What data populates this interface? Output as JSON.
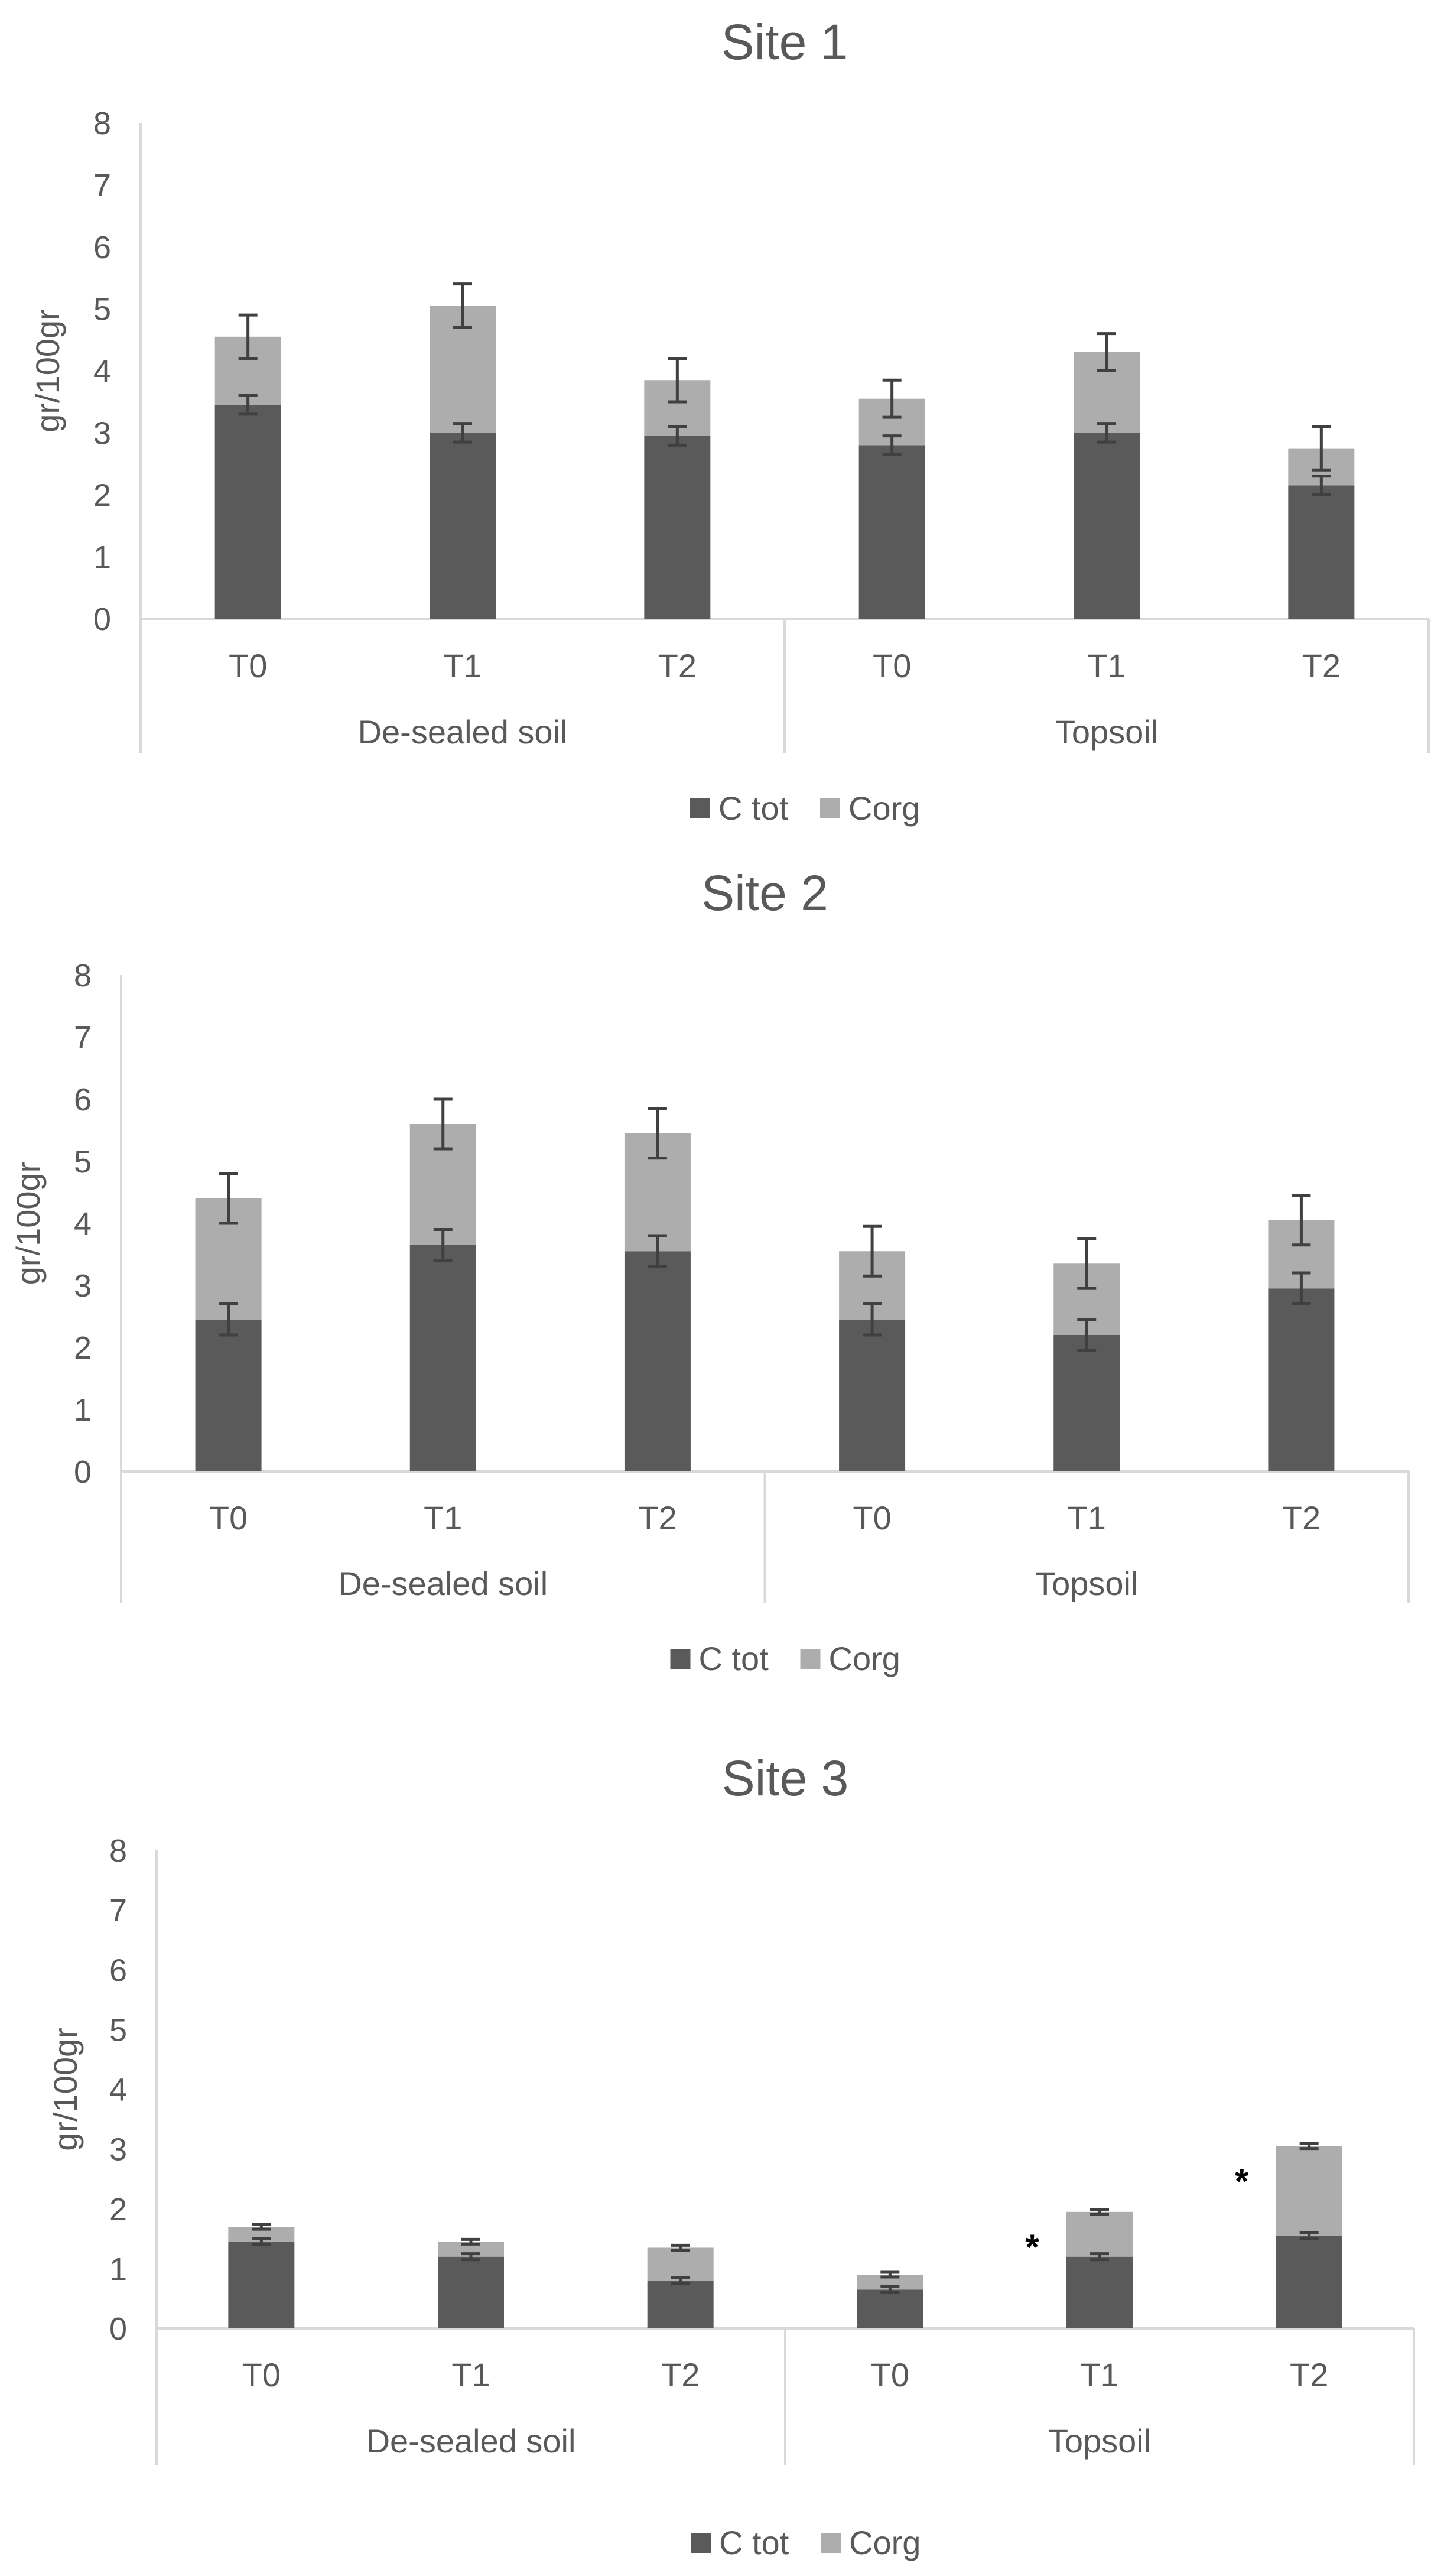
{
  "colors": {
    "ctot": "#5a5a5a",
    "corg": "#adadad",
    "axis": "#d9d9d9",
    "text": "#595959",
    "error": "#404040",
    "background": "#ffffff"
  },
  "chart_data": [
    {
      "type": "bar",
      "stacked": true,
      "title": "Site 1",
      "ylabel": "gr/100gr",
      "ylim": [
        0,
        8
      ],
      "yticks": [
        "0",
        "1",
        "2",
        "3",
        "4",
        "5",
        "6",
        "7",
        "8"
      ],
      "groups": [
        "De-sealed soil",
        "Topsoil"
      ],
      "categories": [
        "T0",
        "T1",
        "T2",
        "T0",
        "T1",
        "T2"
      ],
      "legend": {
        "position": "bottom",
        "entries": [
          "C tot",
          "Corg"
        ]
      },
      "series": [
        {
          "name": "C tot",
          "values": [
            3.45,
            3.0,
            2.95,
            2.8,
            3.0,
            2.15
          ],
          "errors": [
            0.15,
            0.15,
            0.15,
            0.15,
            0.15,
            0.15
          ]
        },
        {
          "name": "Corg",
          "values": [
            1.1,
            2.05,
            0.9,
            0.75,
            1.3,
            0.6
          ],
          "errors": [
            0.35,
            0.35,
            0.35,
            0.3,
            0.3,
            0.35
          ]
        }
      ],
      "annotations": [
        "",
        "",
        "",
        "",
        "",
        ""
      ]
    },
    {
      "type": "bar",
      "stacked": true,
      "title": "Site 2",
      "ylabel": "gr/100gr",
      "ylim": [
        0,
        8
      ],
      "yticks": [
        "0",
        "1",
        "2",
        "3",
        "4",
        "5",
        "6",
        "7",
        "8"
      ],
      "groups": [
        "De-sealed soil",
        "Topsoil"
      ],
      "categories": [
        "T0",
        "T1",
        "T2",
        "T0",
        "T1",
        "T2"
      ],
      "legend": {
        "position": "bottom",
        "entries": [
          "C tot",
          "Corg"
        ]
      },
      "series": [
        {
          "name": "C tot",
          "values": [
            2.45,
            3.65,
            3.55,
            2.45,
            2.2,
            2.95
          ],
          "errors": [
            0.25,
            0.25,
            0.25,
            0.25,
            0.25,
            0.25
          ]
        },
        {
          "name": "Corg",
          "values": [
            1.95,
            1.95,
            1.9,
            1.1,
            1.15,
            1.1
          ],
          "errors": [
            0.4,
            0.4,
            0.4,
            0.4,
            0.4,
            0.4
          ]
        }
      ],
      "annotations": [
        "",
        "",
        "",
        "",
        "",
        ""
      ]
    },
    {
      "type": "bar",
      "stacked": true,
      "title": "Site 3",
      "ylabel": "gr/100gr",
      "ylim": [
        0,
        8
      ],
      "yticks": [
        "0",
        "1",
        "2",
        "3",
        "4",
        "5",
        "6",
        "7",
        "8"
      ],
      "groups": [
        "De-sealed soil",
        "Topsoil"
      ],
      "categories": [
        "T0",
        "T1",
        "T2",
        "T0",
        "T1",
        "T2"
      ],
      "legend": {
        "position": "bottom",
        "entries": [
          "C tot",
          "Corg"
        ]
      },
      "series": [
        {
          "name": "C tot",
          "values": [
            1.45,
            1.2,
            0.8,
            0.65,
            1.2,
            1.55
          ],
          "errors": [
            0.05,
            0.05,
            0.05,
            0.05,
            0.05,
            0.05
          ]
        },
        {
          "name": "Corg",
          "values": [
            0.25,
            0.25,
            0.55,
            0.25,
            0.75,
            1.5
          ],
          "errors": [
            0.04,
            0.04,
            0.04,
            0.04,
            0.04,
            0.04
          ]
        }
      ],
      "annotations": [
        "",
        "",
        "",
        "",
        "*",
        "*"
      ]
    }
  ]
}
